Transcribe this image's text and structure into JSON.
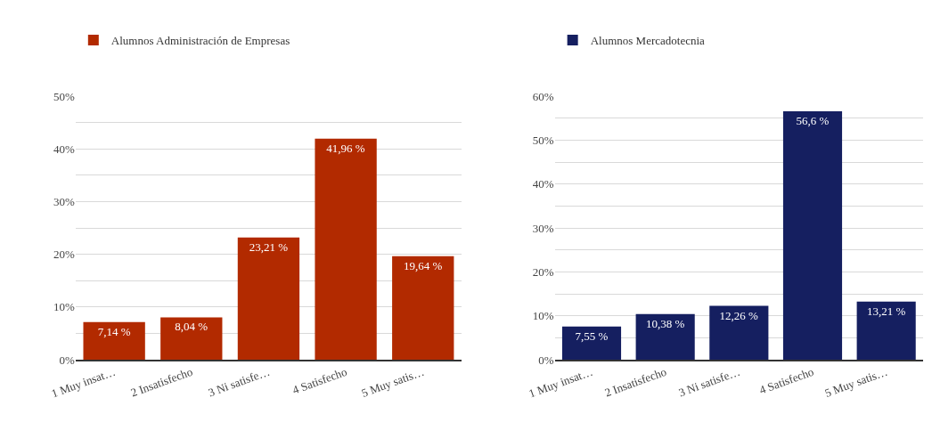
{
  "chart_data": [
    {
      "type": "bar",
      "categories": [
        "1 Muy insat…",
        "2 Insatisfecho",
        "3 Ni satisfe…",
        "4 Satisfecho",
        "5 Muy satis…"
      ],
      "series": [
        {
          "name": "Alumnos Administración de Empresas",
          "color": "#b22a00",
          "values": [
            7.14,
            8.04,
            23.21,
            41.96,
            19.64
          ],
          "value_labels": [
            "7,14 %",
            "8,04 %",
            "23,21 %",
            "41,96 %",
            "19,64 %"
          ]
        }
      ],
      "ylim": [
        0,
        50
      ],
      "yticks": [
        {
          "value": 0,
          "label": "0%"
        },
        {
          "value": 5,
          "label": null
        },
        {
          "value": 10,
          "label": "10%"
        },
        {
          "value": 15,
          "label": null
        },
        {
          "value": 20,
          "label": "20%"
        },
        {
          "value": 25,
          "label": null
        },
        {
          "value": 30,
          "label": "30%"
        },
        {
          "value": 35,
          "label": null
        },
        {
          "value": 40,
          "label": "40%"
        },
        {
          "value": 45,
          "label": null
        },
        {
          "value": 50,
          "label": "50%"
        }
      ],
      "grid": "y",
      "legend": "top left"
    },
    {
      "type": "bar",
      "categories": [
        "1 Muy insat…",
        "2 Insatisfecho",
        "3 Ni satisfe…",
        "4 Satisfecho",
        "5 Muy satis…"
      ],
      "series": [
        {
          "name": "Alumnos Mercadotecnia",
          "color": "#151f60",
          "values": [
            7.55,
            10.38,
            12.26,
            56.6,
            13.21
          ],
          "value_labels": [
            "7,55 %",
            "10,38 %",
            "12,26 %",
            "56,6 %",
            "13,21 %"
          ]
        }
      ],
      "ylim": [
        0,
        60
      ],
      "yticks": [
        {
          "value": 0,
          "label": "0%"
        },
        {
          "value": 5,
          "label": null
        },
        {
          "value": 10,
          "label": "10%"
        },
        {
          "value": 15,
          "label": null
        },
        {
          "value": 20,
          "label": "20%"
        },
        {
          "value": 25,
          "label": null
        },
        {
          "value": 30,
          "label": "30%"
        },
        {
          "value": 35,
          "label": null
        },
        {
          "value": 40,
          "label": "40%"
        },
        {
          "value": 45,
          "label": null
        },
        {
          "value": 50,
          "label": "50%"
        },
        {
          "value": 55,
          "label": null
        },
        {
          "value": 60,
          "label": "60%"
        }
      ],
      "grid": "y",
      "legend": "top left"
    }
  ]
}
